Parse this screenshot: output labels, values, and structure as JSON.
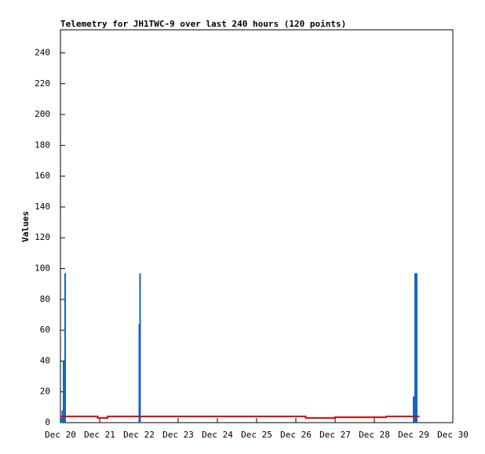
{
  "chart_data": {
    "type": "line",
    "title": "Telemetry for JH1TWC-9 over last 240 hours (120 points)",
    "y_label": "Values",
    "xlim": [
      0,
      10
    ],
    "xticks": [
      {
        "value": 0,
        "label": "Dec 20"
      },
      {
        "value": 1,
        "label": "Dec 21"
      },
      {
        "value": 2,
        "label": "Dec 22"
      },
      {
        "value": 3,
        "label": "Dec 23"
      },
      {
        "value": 4,
        "label": "Dec 24"
      },
      {
        "value": 5,
        "label": "Dec 25"
      },
      {
        "value": 6,
        "label": "Dec 26"
      },
      {
        "value": 7,
        "label": "Dec 27"
      },
      {
        "value": 8,
        "label": "Dec 28"
      },
      {
        "value": 9,
        "label": "Dec 29"
      },
      {
        "value": 10,
        "label": "Dec 30"
      }
    ],
    "ylim": [
      0,
      255
    ],
    "yticks": [
      0,
      20,
      40,
      60,
      80,
      100,
      120,
      140,
      160,
      180,
      200,
      220,
      240
    ],
    "series": [
      {
        "color": "#1565c0",
        "style": "impulses",
        "x": [
          0.02,
          0.05,
          0.08,
          0.12,
          2.01,
          2.03,
          9.0,
          9.04,
          9.08
        ],
        "values": [
          3,
          8,
          40,
          97,
          64,
          97,
          17,
          97,
          97
        ]
      },
      {
        "color": "#e00000",
        "style": "lines",
        "x": [
          0,
          0.95,
          0.95,
          1.2,
          1.2,
          6.25,
          6.25,
          7,
          7,
          8.3,
          8.3,
          9.15
        ],
        "values": [
          4,
          4,
          3,
          3,
          4,
          4,
          3,
          3,
          3.5,
          3.5,
          4,
          4
        ]
      }
    ]
  }
}
